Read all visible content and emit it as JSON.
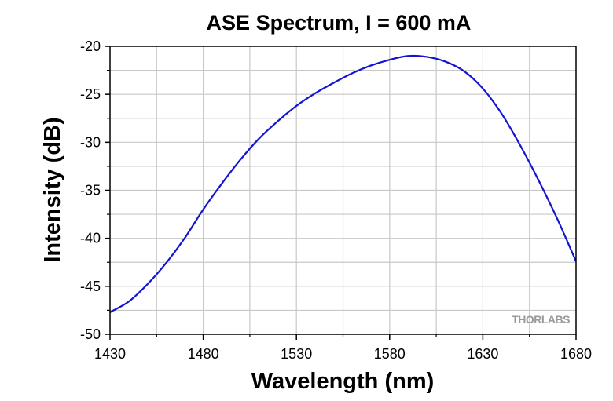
{
  "chart_data": {
    "type": "line",
    "title": "ASE Spectrum, I = 600 mA",
    "xlabel": "Wavelength (nm)",
    "ylabel": "Intensity (dB)",
    "xlim": [
      1430,
      1680
    ],
    "ylim": [
      -50,
      -20
    ],
    "xticks": [
      1430,
      1480,
      1530,
      1580,
      1630,
      1680
    ],
    "yticks": [
      -20,
      -25,
      -30,
      -35,
      -40,
      -45,
      -50
    ],
    "grid": true,
    "line_color": "#1414d2",
    "watermark": "THORLABS",
    "series": [
      {
        "x": [
          1430,
          1440,
          1450,
          1460,
          1470,
          1480,
          1490,
          1500,
          1510,
          1520,
          1530,
          1540,
          1550,
          1560,
          1570,
          1580,
          1590,
          1600,
          1610,
          1620,
          1630,
          1640,
          1650,
          1660,
          1670,
          1680
        ],
        "y": [
          -47.7,
          -46.6,
          -44.8,
          -42.6,
          -40.0,
          -37.0,
          -34.3,
          -31.8,
          -29.6,
          -27.8,
          -26.2,
          -24.9,
          -23.8,
          -22.8,
          -22.0,
          -21.4,
          -21.0,
          -21.1,
          -21.6,
          -22.6,
          -24.4,
          -27.0,
          -30.3,
          -34.0,
          -38.0,
          -42.4
        ]
      }
    ]
  }
}
